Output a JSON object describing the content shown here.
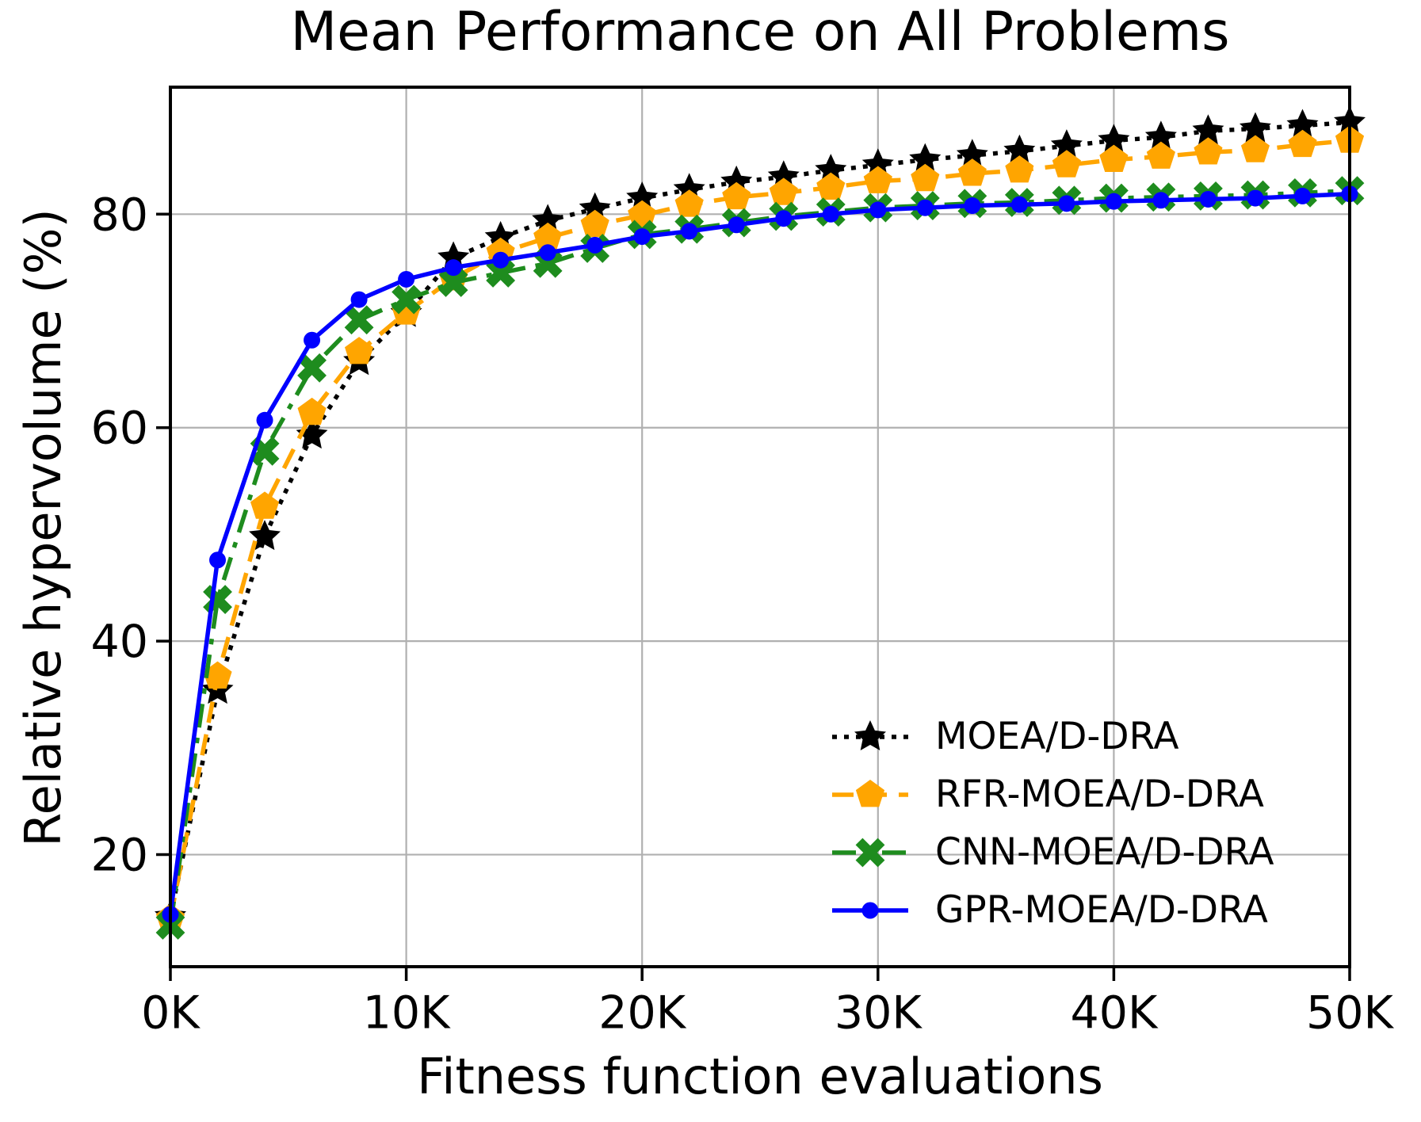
{
  "chart_data": {
    "type": "line",
    "title": "Mean Performance on All Problems",
    "xlabel": "Fitness function evaluations",
    "ylabel": "Relative hypervolume (%)",
    "xlim": [
      0,
      50
    ],
    "ylim": [
      9.5,
      91.9
    ],
    "xticks": [
      0,
      10,
      20,
      30,
      40,
      50
    ],
    "xtick_labels": [
      "0K",
      "10K",
      "20K",
      "30K",
      "40K",
      "50K"
    ],
    "yticks": [
      20,
      40,
      60,
      80
    ],
    "ytick_labels": [
      "20",
      "40",
      "60",
      "80"
    ],
    "grid": true,
    "grid_color": "#b0b0b0",
    "legend_position": "lower-right-inside",
    "legend_frame": false,
    "x_units": "thousands",
    "x": [
      0,
      2,
      4,
      6,
      8,
      10,
      12,
      14,
      16,
      18,
      20,
      22,
      24,
      26,
      28,
      30,
      32,
      34,
      36,
      38,
      40,
      42,
      44,
      46,
      48,
      50
    ],
    "series": [
      {
        "label": "MOEA/D-DRA",
        "color": "#000000",
        "linestyle": "dotted",
        "marker": "star",
        "values": [
          14.2,
          35.4,
          49.8,
          59.3,
          66.2,
          70.7,
          75.9,
          77.8,
          79.4,
          80.5,
          81.5,
          82.3,
          83.0,
          83.5,
          84.1,
          84.6,
          85.1,
          85.5,
          85.9,
          86.4,
          86.9,
          87.2,
          87.8,
          88.0,
          88.3,
          88.6
        ]
      },
      {
        "label": "RFR-MOEA/D-DRA",
        "color": "#FFA500",
        "linestyle": "dashed",
        "marker": "pentagon",
        "values": [
          14.0,
          36.7,
          52.6,
          61.4,
          67.1,
          70.8,
          74.0,
          76.4,
          77.8,
          79.0,
          79.9,
          80.9,
          81.6,
          82.0,
          82.5,
          83.1,
          83.3,
          83.8,
          84.1,
          84.6,
          85.1,
          85.4,
          85.8,
          86.0,
          86.5,
          86.9
        ]
      },
      {
        "label": "CNN-MOEA/D-DRA",
        "color": "#1e8c1e",
        "linestyle": "dashdot",
        "marker": "x",
        "values": [
          13.4,
          43.9,
          57.8,
          65.6,
          70.1,
          72.0,
          73.6,
          74.5,
          75.4,
          76.8,
          78.1,
          78.6,
          79.2,
          79.8,
          80.2,
          80.6,
          80.8,
          81.0,
          81.1,
          81.3,
          81.5,
          81.6,
          81.7,
          81.8,
          82.0,
          82.2
        ]
      },
      {
        "label": "GPR-MOEA/D-DRA",
        "color": "#0000FF",
        "linestyle": "solid",
        "marker": "circle",
        "values": [
          14.4,
          47.6,
          60.7,
          68.2,
          72.0,
          73.9,
          75.0,
          75.7,
          76.4,
          77.1,
          77.9,
          78.4,
          79.0,
          79.6,
          80.0,
          80.4,
          80.6,
          80.8,
          80.9,
          81.0,
          81.2,
          81.3,
          81.4,
          81.5,
          81.7,
          81.9
        ]
      }
    ]
  }
}
